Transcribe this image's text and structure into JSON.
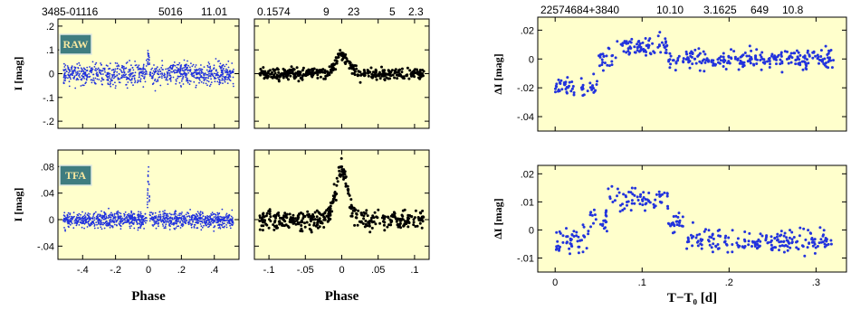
{
  "header": {
    "left": [
      "3485-01116",
      "5016",
      "11.01"
    ],
    "middle": [
      "0.1574",
      "9",
      "23",
      "5",
      "2.3"
    ],
    "right": [
      "22574684+3840",
      "10.10",
      "3.1625",
      "649",
      "10.8"
    ]
  },
  "colors": {
    "panel_bg": "#ffffcc",
    "blue_points": "#2233dd",
    "black_points": "#000000",
    "badge_bg": "#3f7d80",
    "badge_text": "#f7e8a0"
  },
  "chart_data": [
    {
      "id": "raw-full",
      "type": "scatter",
      "badge": "RAW",
      "ylabel": "I [mag]",
      "xlim": [
        -0.55,
        0.55
      ],
      "ylim": [
        0.23,
        -0.23
      ],
      "xticks": [
        -0.4,
        -0.2,
        0,
        0.2,
        0.4
      ],
      "xtick_labels": [
        "",
        "",
        "",
        "",
        ""
      ],
      "yticks": [
        -0.2,
        -0.1,
        0,
        0.1,
        0.2
      ],
      "ytick_labels": [
        "-.2",
        "-.1",
        "0",
        ".1",
        ".2"
      ],
      "series": [
        {
          "color": "blue",
          "style": "small-dots",
          "n": 900,
          "baseline": 0.0,
          "scatter_sd": 0.04,
          "eclipse_center": 0,
          "eclipse_depth": 0.08
        }
      ]
    },
    {
      "id": "raw-zoom",
      "type": "scatter",
      "xlim": [
        -0.12,
        0.12
      ],
      "ylim": [
        0.23,
        -0.23
      ],
      "xticks": [
        -0.1,
        -0.05,
        0,
        0.05,
        0.1
      ],
      "xtick_labels": [
        "",
        "",
        "",
        "",
        ""
      ],
      "yticks": [
        -0.2,
        -0.1,
        0,
        0.1,
        0.2
      ],
      "ytick_labels": [
        "",
        "",
        "",
        "",
        ""
      ],
      "series": [
        {
          "color": "black",
          "style": "dots",
          "n": 420,
          "baseline": 0.0,
          "scatter_sd": 0.02,
          "eclipse_center": 0,
          "eclipse_depth": 0.08
        }
      ]
    },
    {
      "id": "tfa-full",
      "type": "scatter",
      "badge": "TFA",
      "ylabel": "I [mag]",
      "xlabel": "Phase",
      "xlim": [
        -0.55,
        0.55
      ],
      "ylim": [
        0.105,
        -0.06
      ],
      "xticks": [
        -0.4,
        -0.2,
        0,
        0.2,
        0.4
      ],
      "xtick_labels": [
        "-.4",
        "-.2",
        "0",
        ".2",
        ".4"
      ],
      "yticks": [
        -0.04,
        0,
        0.04,
        0.08
      ],
      "ytick_labels": [
        "-.04",
        "0",
        ".04",
        ".08"
      ],
      "series": [
        {
          "color": "blue",
          "style": "small-dots",
          "n": 1100,
          "baseline": 0.0,
          "scatter_sd": 0.01,
          "eclipse_center": 0,
          "eclipse_depth": 0.075
        }
      ]
    },
    {
      "id": "tfa-zoom",
      "type": "scatter",
      "xlabel": "Phase",
      "xlim": [
        -0.12,
        0.12
      ],
      "ylim": [
        0.105,
        -0.06
      ],
      "xticks": [
        -0.1,
        -0.05,
        0,
        0.05,
        0.1
      ],
      "xtick_labels": [
        "-.1",
        "-.05",
        "0",
        ".05",
        ".1"
      ],
      "yticks": [
        -0.04,
        0,
        0.04,
        0.08
      ],
      "ytick_labels": [
        "",
        "",
        "",
        ""
      ],
      "series": [
        {
          "color": "black",
          "style": "dots",
          "n": 420,
          "baseline": 0.0,
          "scatter_sd": 0.012,
          "eclipse_center": 0,
          "eclipse_depth": 0.07
        }
      ]
    },
    {
      "id": "dI-top",
      "type": "scatter",
      "ylabel": "ΔI [mag]",
      "xlim": [
        -0.02,
        0.335
      ],
      "ylim": [
        0.029,
        -0.05
      ],
      "xticks": [
        0,
        0.1,
        0.2,
        0.3
      ],
      "xtick_labels": [
        "",
        "",
        "",
        ""
      ],
      "yticks": [
        -0.04,
        -0.02,
        0,
        0.02
      ],
      "ytick_labels": [
        "-.04",
        "-.02",
        "0",
        ".02"
      ],
      "series": [
        {
          "color": "blue",
          "style": "dots",
          "n": 420,
          "baseline": 0.0,
          "scatter_sd": 0.006,
          "segments": [
            [
              0,
              0.05,
              -0.018
            ],
            [
              0.05,
              0.07,
              0.0
            ],
            [
              0.07,
              0.13,
              0.009
            ],
            [
              0.13,
              0.32,
              0.0
            ]
          ]
        }
      ]
    },
    {
      "id": "dI-bottom",
      "type": "scatter",
      "ylabel": "ΔI [mag]",
      "xlabel": "T−T₀ [d]",
      "xlim": [
        -0.02,
        0.335
      ],
      "ylim": [
        0.023,
        -0.015
      ],
      "xticks": [
        0,
        0.1,
        0.2,
        0.3
      ],
      "xtick_labels": [
        "0",
        ".1",
        ".2",
        ".3"
      ],
      "yticks": [
        -0.01,
        0,
        0.01,
        0.02
      ],
      "ytick_labels": [
        "-.01",
        "0",
        ".01",
        ".02"
      ],
      "series": [
        {
          "color": "blue",
          "style": "dots",
          "n": 380,
          "baseline": 0.0,
          "scatter_sd": 0.0035,
          "segments": [
            [
              0,
              0.04,
              -0.004
            ],
            [
              0.04,
              0.06,
              0.004
            ],
            [
              0.06,
              0.13,
              0.011
            ],
            [
              0.13,
              0.15,
              0.003
            ],
            [
              0.15,
              0.32,
              -0.004
            ]
          ]
        }
      ]
    }
  ]
}
